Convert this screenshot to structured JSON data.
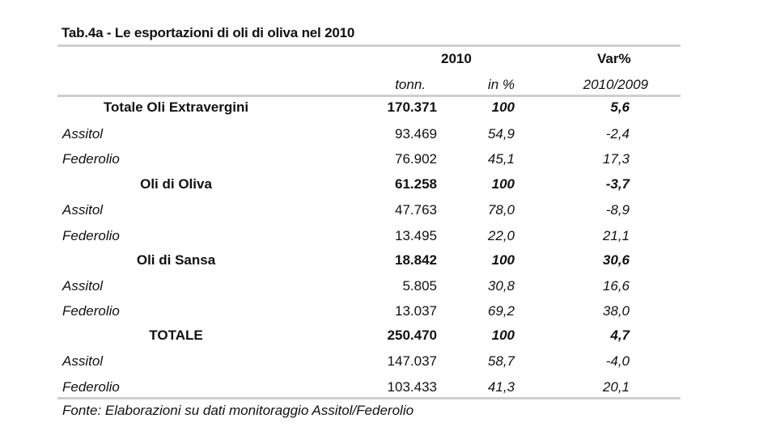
{
  "title": "Tab.4a - Le esportazioni di oli di oliva nel 2010",
  "header": {
    "year": "2010",
    "var": "Var%",
    "sub_tonn": "tonn.",
    "sub_pc": "in %",
    "sub_var": "2010/2009"
  },
  "rows": [
    {
      "label": "Totale Oli Extravergini",
      "tonn": "170.371",
      "pc": "100",
      "var": "5,6"
    },
    {
      "label": "Assitol",
      "tonn": "93.469",
      "pc": "54,9",
      "var": "-2,4"
    },
    {
      "label": "Federolio",
      "tonn": "76.902",
      "pc": "45,1",
      "var": "17,3"
    },
    {
      "label": "Oli di Oliva",
      "tonn": "61.258",
      "pc": "100",
      "var": "-3,7"
    },
    {
      "label": "Assitol",
      "tonn": "47.763",
      "pc": "78,0",
      "var": "-8,9"
    },
    {
      "label": "Federolio",
      "tonn": "13.495",
      "pc": "22,0",
      "var": "21,1"
    },
    {
      "label": "Oli di Sansa",
      "tonn": "18.842",
      "pc": "100",
      "var": "30,6"
    },
    {
      "label": "Assitol",
      "tonn": "5.805",
      "pc": "30,8",
      "var": "16,6"
    },
    {
      "label": "Federolio",
      "tonn": "13.037",
      "pc": "69,2",
      "var": "38,0"
    },
    {
      "label": "TOTALE",
      "tonn": "250.470",
      "pc": "100",
      "var": "4,7"
    },
    {
      "label": "Assitol",
      "tonn": "147.037",
      "pc": "58,7",
      "var": "-4,0"
    },
    {
      "label": "Federolio",
      "tonn": "103.433",
      "pc": "41,3",
      "var": "20,1"
    }
  ],
  "footer": "Fonte: Elaborazioni su dati monitoraggio Assitol/Federolio"
}
